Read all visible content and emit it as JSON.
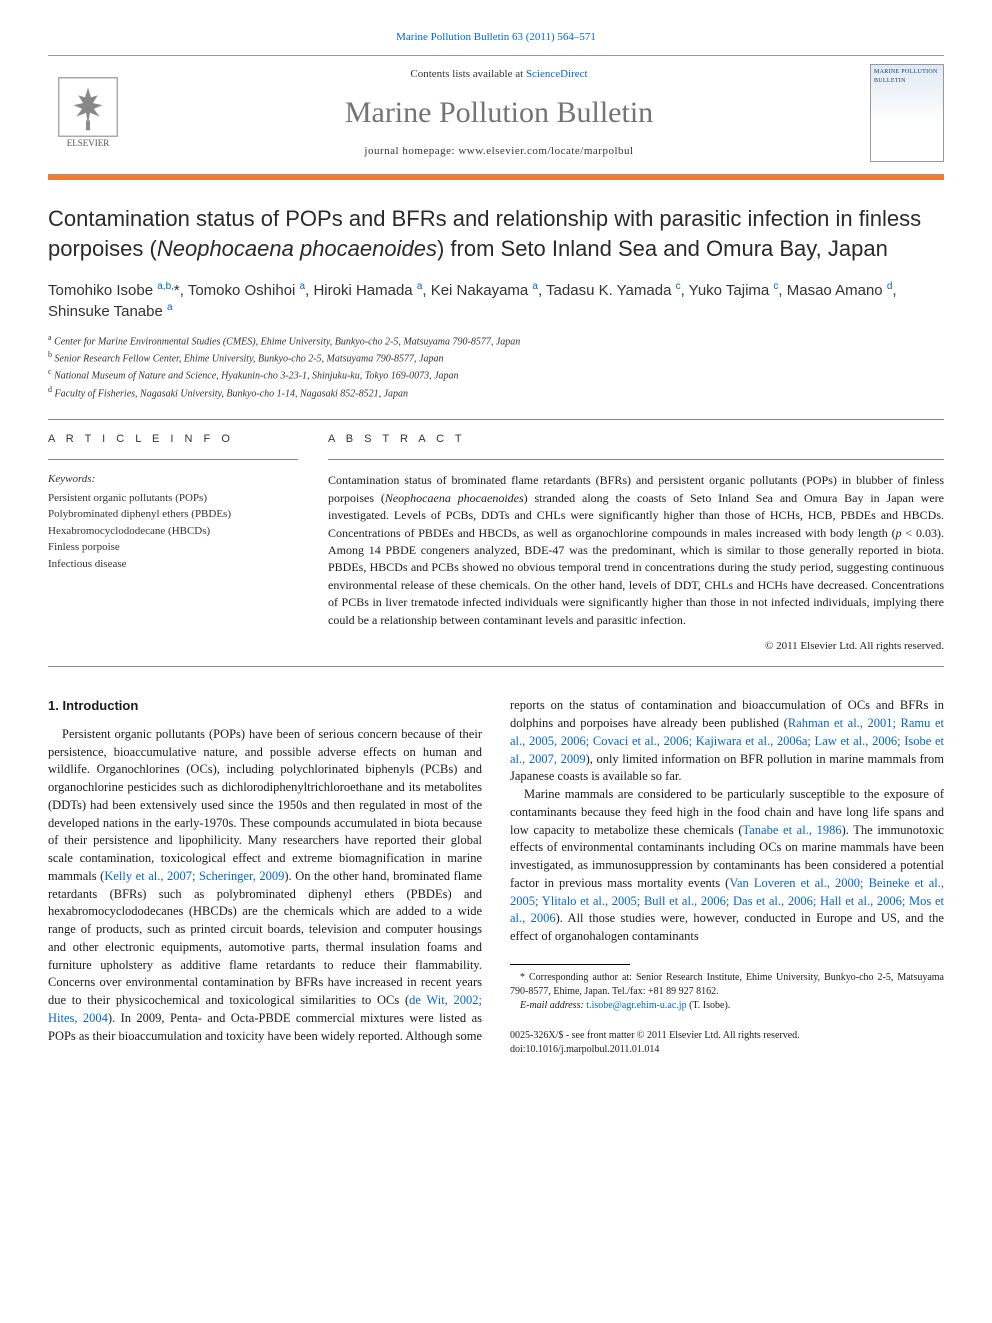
{
  "header": {
    "citation_link": "Marine Pollution Bulletin 63 (2011) 564–571",
    "contents_prefix": "Contents lists available at ",
    "contents_link": "ScienceDirect",
    "journal_name": "Marine Pollution Bulletin",
    "homepage_prefix": "journal homepage: ",
    "homepage_url": "www.elsevier.com/locate/marpolbul",
    "publisher_name": "ELSEVIER",
    "cover_thumb_text": "MARINE POLLUTION BULLETIN"
  },
  "article": {
    "title_html": "Contamination status of POPs and BFRs and relationship with parasitic infection in finless porpoises (<em>Neophocaena phocaenoides</em>) from Seto Inland Sea and Omura Bay, Japan",
    "authors_html": "Tomohiko Isobe <sup>a,b,</sup><span class='star'>*</span>, Tomoko Oshihoi <sup>a</sup>, Hiroki Hamada <sup>a</sup>, Kei Nakayama <sup>a</sup>, Tadasu K. Yamada <sup>c</sup>, Yuko Tajima <sup>c</sup>, Masao Amano <sup>d</sup>, Shinsuke Tanabe <sup>a</sup>",
    "affiliations": [
      "a Center for Marine Environmental Studies (CMES), Ehime University, Bunkyo-cho 2-5, Matsuyama 790-8577, Japan",
      "b Senior Research Fellow Center, Ehime University, Bunkyo-cho 2-5, Matsuyama 790-8577, Japan",
      "c National Museum of Nature and Science, Hyakunin-cho 3-23-1, Shinjuku-ku, Tokyo 169-0073, Japan",
      "d Faculty of Fisheries, Nagasaki University, Bunkyo-cho 1-14, Nagasaki 852-8521, Japan"
    ]
  },
  "info": {
    "article_info_label": "A R T I C L E   I N F O",
    "abstract_label": "A B S T R A C T",
    "keywords_header": "Keywords:",
    "keywords": [
      "Persistent organic pollutants (POPs)",
      "Polybrominated diphenyl ethers (PBDEs)",
      "Hexabromocyclododecane (HBCDs)",
      "Finless porpoise",
      "Infectious disease"
    ],
    "abstract_html": "Contamination status of brominated flame retardants (BFRs) and persistent organic pollutants (POPs) in blubber of finless porpoises (<em>Neophocaena phocaenoides</em>) stranded along the coasts of Seto Inland Sea and Omura Bay in Japan were investigated. Levels of PCBs, DDTs and CHLs were significantly higher than those of HCHs, HCB, PBDEs and HBCDs. Concentrations of PBDEs and HBCDs, as well as organochlorine compounds in males increased with body length (<em>p</em> &lt; 0.03). Among 14 PBDE congeners analyzed, BDE-47 was the predominant, which is similar to those generally reported in biota. PBDEs, HBCDs and PCBs showed no obvious temporal trend in concentrations during the study period, suggesting continuous environmental release of these chemicals. On the other hand, levels of DDT, CHLs and HCHs have decreased. Concentrations of PCBs in liver trematode infected individuals were significantly higher than those in not infected individuals, implying there could be a relationship between contaminant levels and parasitic infection.",
    "copyright": "© 2011 Elsevier Ltd. All rights reserved."
  },
  "body": {
    "section_heading": "1. Introduction",
    "para1_html": "Persistent organic pollutants (POPs) have been of serious concern because of their persistence, bioaccumulative nature, and possible adverse effects on human and wildlife. Organochlorines (OCs), including polychlorinated biphenyls (PCBs) and organochlorine pesticides such as dichlorodiphenyltrichloroethane and its metabolites (DDTs) had been extensively used since the 1950s and then regulated in most of the developed nations in the early-1970s. These compounds accumulated in biota because of their persistence and lipophilicity. Many researchers have reported their global scale contamination, toxicological effect and extreme biomagnification in marine mammals (<span class='ref'>Kelly et al., 2007; Scheringer, 2009</span>). On the other hand, brominated flame retardants (BFRs) such as polybrominated diphenyl ethers (PBDEs) and hexabromocyclododecanes (HBCDs) are the chemicals which are added to a wide range of products, such as printed circuit boards, television and computer housings and other electronic equipments, automotive parts, thermal insulation foams and furniture upholstery as additive flame retardants to reduce their flammability. Concerns over environmental contamination by BFRs have increased in recent years due to their physicochemical and toxicological similarities to OCs (<span class='ref'>de Wit, 2002; Hites, 2004</span>). In 2009, Penta- and Octa-PBDE commercial mixtures were listed as POPs as their bioaccumulation and toxicity have been widely reported. Although some reports on the status of contamination and bioaccumulation of OCs and BFRs in dolphins and porpoises have already been published (<span class='ref'>Rahman et al., 2001; Ramu et al., 2005, 2006; Covaci et al., 2006; Kajiwara et al., 2006a; Law et al., 2006; Isobe et al., 2007, 2009</span>), only limited information on BFR pollution in marine mammals from Japanese coasts is available so far.",
    "para2_html": "Marine mammals are considered to be particularly susceptible to the exposure of contaminants because they feed high in the food chain and have long life spans and low capacity to metabolize these chemicals (<span class='ref'>Tanabe et al., 1986</span>). The immunotoxic effects of environmental contaminants including OCs on marine mammals have been investigated, as immunosuppression by contaminants has been considered a potential factor in previous mass mortality events (<span class='ref'>Van Loveren et al., 2000; Beineke et al., 2005; Ylitalo et al., 2005; Bull et al., 2006; Das et al., 2006; Hall et al., 2006; Mos et al., 2006</span>). All those studies were, however, conducted in Europe and US, and the effect of organohalogen contaminants"
  },
  "footnote": {
    "corresponding": "* Corresponding author at: Senior Research Institute, Ehime University, Bunkyo-cho 2-5, Matsuyama 790-8577, Ehime, Japan. Tel./fax: +81 89 927 8162.",
    "email_label": "E-mail address:",
    "email": "t.isobe@agr.ehim-u.ac.jp",
    "email_name": "(T. Isobe)."
  },
  "footer": {
    "issn_line": "0025-326X/$ - see front matter © 2011 Elsevier Ltd. All rights reserved.",
    "doi_line": "doi:10.1016/j.marpolbul.2011.01.014"
  },
  "colors": {
    "accent": "#f47b2a",
    "link": "#0066cc",
    "journal_name": "#747474",
    "text": "#1a1a1a",
    "rule": "#888888"
  }
}
